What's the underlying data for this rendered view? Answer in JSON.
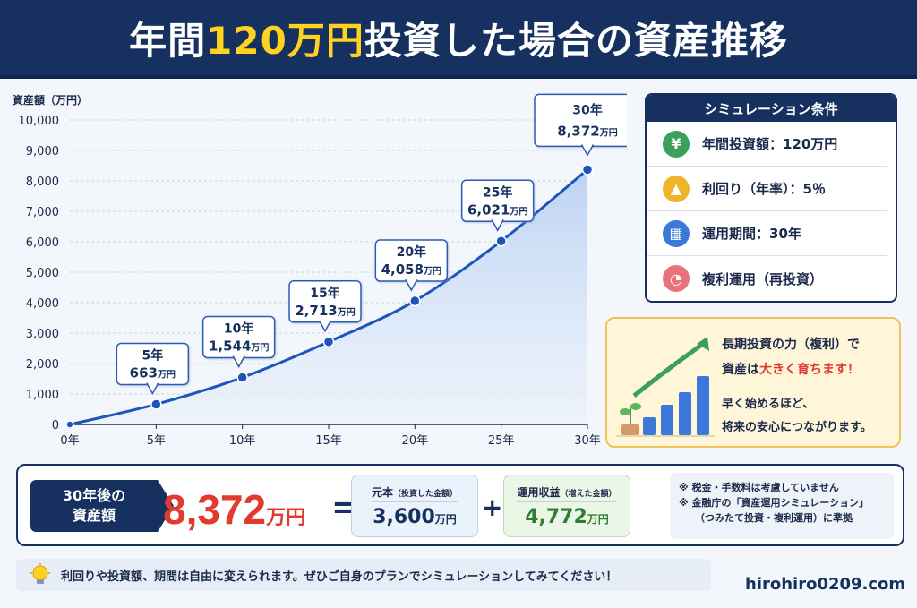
{
  "header": {
    "title_pre": "年間",
    "title_highlight": "120万円",
    "title_post": "投資した場合の資産推移"
  },
  "chart_data": {
    "type": "area",
    "ylabel": "資産額（万円）",
    "x": [
      0,
      5,
      10,
      15,
      20,
      25,
      30
    ],
    "x_tick_labels": [
      "0年",
      "5年",
      "10年",
      "15年",
      "20年",
      "25年",
      "30年"
    ],
    "values": [
      0,
      663,
      1544,
      2713,
      4058,
      6021,
      8372
    ],
    "ylim": [
      0,
      10000
    ],
    "y_ticks": [
      0,
      1000,
      2000,
      3000,
      4000,
      5000,
      6000,
      7000,
      8000,
      9000,
      10000
    ],
    "y_tick_labels": [
      "0",
      "1,000",
      "2,000",
      "3,000",
      "4,000",
      "5,000",
      "6,000",
      "7,000",
      "8,000",
      "9,000",
      "10,000"
    ],
    "grid": true,
    "callouts": [
      {
        "x": 5,
        "year": "5年",
        "value": "663",
        "unit": "万円"
      },
      {
        "x": 10,
        "year": "10年",
        "value": "1,544",
        "unit": "万円"
      },
      {
        "x": 15,
        "year": "15年",
        "value": "2,713",
        "unit": "万円"
      },
      {
        "x": 20,
        "year": "20年",
        "value": "4,058",
        "unit": "万円"
      },
      {
        "x": 25,
        "year": "25年",
        "value": "6,021",
        "unit": "万円"
      },
      {
        "x": 30,
        "year": "30年",
        "value": "8,372",
        "unit": "万円"
      }
    ],
    "line_color": "#1f55b8",
    "fill_color": "#cfe0f7"
  },
  "conditions": {
    "title": "シミュレーション条件",
    "items": [
      {
        "icon": "yen-icon",
        "glyph": "¥",
        "color": "#3aa05a",
        "text": "年間投資額：120万円"
      },
      {
        "icon": "growth-chart-icon",
        "glyph": "▲",
        "color": "#f0b429",
        "text": "利回り（年率）：5％"
      },
      {
        "icon": "calendar-icon",
        "glyph": "▦",
        "color": "#3b78d8",
        "text": "運用期間：30年"
      },
      {
        "icon": "pie-chart-icon",
        "glyph": "◔",
        "color": "#e8737a",
        "text": "複利運用（再投資）"
      }
    ]
  },
  "message": {
    "line1": "長期投資の力（複利）で",
    "line2_pre": "資産は",
    "line2_red": "大きく育ちます！",
    "line3": "早く始めるほど、",
    "line4": "将来の安心につながります。"
  },
  "result": {
    "badge_line1": "30年後の",
    "badge_line2": "資産額",
    "total_value": "8,372",
    "total_unit": "万円",
    "equals": "=",
    "plus": "+",
    "principal_label": "元本",
    "principal_note": "（投資した金額）",
    "principal_value": "3,600",
    "principal_unit": "万円",
    "gain_label": "運用収益",
    "gain_note": "（増えた金額）",
    "gain_value": "4,772",
    "gain_unit": "万円",
    "note1": "※ 税金・手数料は考慮していません",
    "note2": "※ 金融庁の「資産運用シミュレーション」",
    "note3": "（つみたて投資・複利運用）に準拠"
  },
  "tip": {
    "text": "利回りや投資額、期間は自由に変えられます。ぜひご自身のプランでシミュレーションしてみてください！"
  },
  "site": {
    "url": "hirohiro0209.com"
  }
}
